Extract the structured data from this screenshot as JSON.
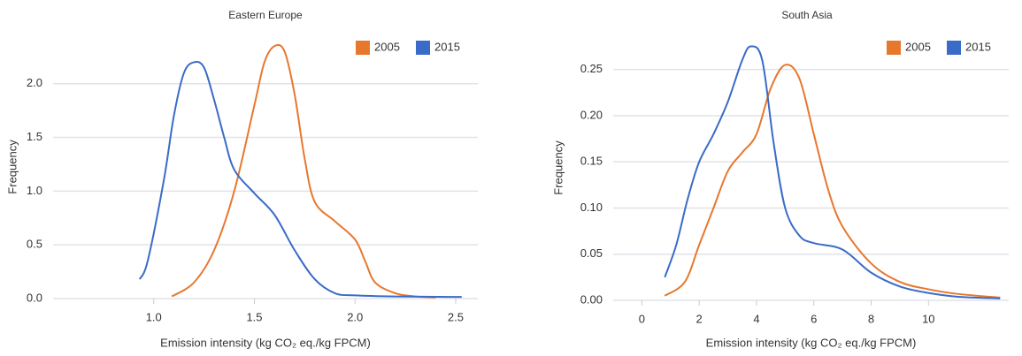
{
  "chart_data": [
    {
      "type": "line",
      "title": "Eastern  Europe",
      "x_label": "Emission intensity (kg CO₂ eq./kg FPCM)",
      "y_label": "Frequency",
      "xlim": [
        0.5,
        2.61
      ],
      "ylim": [
        0,
        2.45
      ],
      "xticks": [
        {
          "value": 1,
          "label": "1.0"
        },
        1.5,
        {
          "value": 2,
          "label": "2.0"
        },
        2.5
      ],
      "yticks": [
        {
          "value": 0,
          "label": "0.0"
        },
        0.5,
        {
          "value": 1,
          "label": "1.0"
        },
        1.5,
        {
          "value": 2,
          "label": "2.0"
        }
      ],
      "grid": true,
      "legend": "top-right",
      "series": [
        {
          "name": "2005",
          "color": "#e8772e",
          "x": [
            1.09,
            1.2,
            1.3,
            1.4,
            1.5,
            1.55,
            1.6,
            1.65,
            1.7,
            1.75,
            1.8,
            1.9,
            2.0,
            2.05,
            2.1,
            2.2,
            2.3,
            2.4
          ],
          "values": [
            0.02,
            0.15,
            0.45,
            1.0,
            1.8,
            2.2,
            2.35,
            2.3,
            1.9,
            1.3,
            0.9,
            0.72,
            0.55,
            0.35,
            0.15,
            0.05,
            0.02,
            0.01
          ]
        },
        {
          "name": "2015",
          "color": "#3a6bc8",
          "x": [
            0.93,
            0.97,
            1.05,
            1.1,
            1.15,
            1.2,
            1.25,
            1.3,
            1.35,
            1.4,
            1.5,
            1.6,
            1.7,
            1.8,
            1.9,
            2.0,
            2.2,
            2.53
          ],
          "values": [
            0.18,
            0.35,
            1.1,
            1.7,
            2.1,
            2.2,
            2.15,
            1.85,
            1.5,
            1.2,
            0.98,
            0.78,
            0.45,
            0.18,
            0.05,
            0.03,
            0.02,
            0.015
          ]
        }
      ]
    },
    {
      "type": "line",
      "title": "South Asia",
      "x_label": "Emission intensity (kg CO₂ eq./kg FPCM)",
      "y_label": "Frequency",
      "xlim": [
        -1,
        12.8
      ],
      "ylim": [
        0,
        0.287
      ],
      "xticks": [
        0,
        2,
        4,
        6,
        8,
        10
      ],
      "yticks": [
        {
          "value": 0,
          "label": "0.00"
        },
        0.05,
        {
          "value": 0.1,
          "label": "0.10"
        },
        0.15,
        {
          "value": 0.2,
          "label": "0.20"
        },
        0.25
      ],
      "grid": true,
      "legend": "top-right",
      "series": [
        {
          "name": "2005",
          "color": "#e8772e",
          "x": [
            0.8,
            1.5,
            2,
            2.5,
            3,
            3.5,
            4,
            4.5,
            5,
            5.5,
            6,
            6.5,
            7,
            8,
            9,
            10,
            11,
            12.5
          ],
          "values": [
            0.005,
            0.02,
            0.06,
            0.1,
            0.14,
            0.16,
            0.18,
            0.23,
            0.255,
            0.24,
            0.18,
            0.12,
            0.08,
            0.04,
            0.02,
            0.012,
            0.007,
            0.003
          ]
        },
        {
          "name": "2015",
          "color": "#3a6bc8",
          "x": [
            0.8,
            1.2,
            1.6,
            2,
            2.5,
            3,
            3.5,
            3.8,
            4.2,
            4.6,
            5,
            5.5,
            6,
            7,
            8,
            9,
            10,
            11,
            12.5
          ],
          "values": [
            0.025,
            0.06,
            0.11,
            0.15,
            0.18,
            0.215,
            0.26,
            0.275,
            0.26,
            0.17,
            0.1,
            0.07,
            0.062,
            0.055,
            0.03,
            0.015,
            0.008,
            0.004,
            0.002
          ]
        }
      ]
    }
  ]
}
